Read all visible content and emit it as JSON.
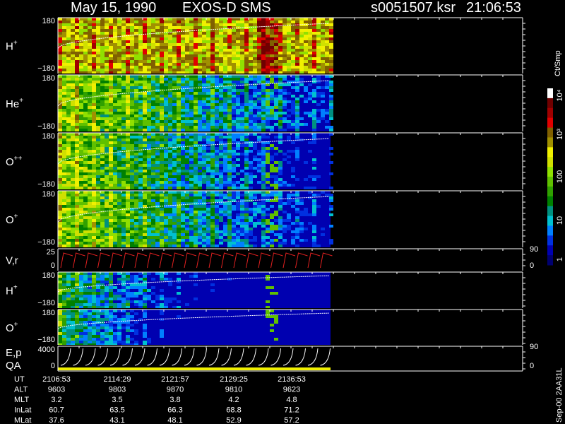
{
  "header": {
    "date": "May 15, 1990",
    "mission": "EXOS-D SMS",
    "file": "s0051507.ksr",
    "time": "21:06:53"
  },
  "panels": [
    {
      "label": "H",
      "sup": "+",
      "ticks": [
        "180",
        "−180"
      ]
    },
    {
      "label": "He",
      "sup": "+",
      "ticks": [
        "180",
        "−180"
      ]
    },
    {
      "label": "O",
      "sup": "++",
      "ticks": [
        "180",
        "−180"
      ]
    },
    {
      "label": "O",
      "sup": "+",
      "ticks": [
        "180",
        "−180"
      ]
    },
    {
      "label": "V,r",
      "ticks": [
        "25",
        "0"
      ],
      "right_ticks": [
        "90",
        "0"
      ]
    },
    {
      "label": "H",
      "sup": "+",
      "ticks": [
        "180",
        "−180"
      ]
    },
    {
      "label": "O",
      "sup": "+",
      "ticks": [
        "180",
        "−180"
      ]
    },
    {
      "label": "E,p",
      "label2": "QA",
      "ticks": [
        "4000",
        "0"
      ],
      "right_ticks": [
        "90",
        "0"
      ]
    }
  ],
  "colorbar": {
    "unit": "Ct/Smp",
    "ticks": [
      "10⁴",
      "10³",
      "100",
      "10",
      "1"
    ]
  },
  "footer": {
    "rows": [
      {
        "name": "UT",
        "values": [
          "2106:53",
          "2114:29",
          "2121:57",
          "2129:25",
          "2136:53"
        ]
      },
      {
        "name": "ALT",
        "values": [
          "9603",
          "9803",
          "9870",
          "9810",
          "9623"
        ]
      },
      {
        "name": "MLT",
        "values": [
          "3.2",
          "3.5",
          "3.8",
          "4.2",
          "4.8"
        ]
      },
      {
        "name": "InLat",
        "values": [
          "60.7",
          "63.5",
          "66.3",
          "68.8",
          "71.2"
        ]
      },
      {
        "name": "MLat",
        "values": [
          "37.6",
          "43.1",
          "48.1",
          "52.9",
          "57.2"
        ]
      }
    ]
  },
  "side_note": "Sep-00 2AA31L"
}
